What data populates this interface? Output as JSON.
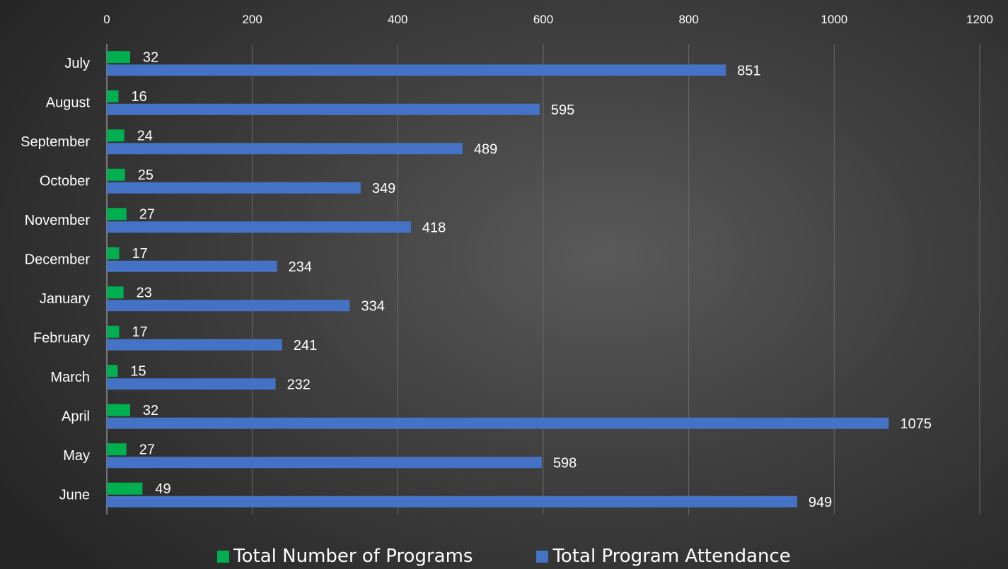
{
  "chart_data": {
    "type": "bar",
    "orientation": "horizontal",
    "categories": [
      "July",
      "August",
      "September",
      "October",
      "November",
      "December",
      "January",
      "February",
      "March",
      "April",
      "May",
      "June"
    ],
    "series": [
      {
        "name": "Total Number of Programs",
        "color": "#00b050",
        "values": [
          32,
          16,
          24,
          25,
          27,
          17,
          23,
          17,
          15,
          32,
          27,
          49
        ]
      },
      {
        "name": "Total Program Attendance",
        "color": "#4472c4",
        "values": [
          851,
          595,
          489,
          349,
          418,
          234,
          334,
          241,
          232,
          1075,
          598,
          949
        ]
      }
    ],
    "x_ticks": [
      "0",
      "200",
      "400",
      "600",
      "800",
      "1000",
      "1200"
    ],
    "xlim": [
      0,
      1200
    ],
    "axis_position": "top",
    "grid": true,
    "legend_placement": "bottom"
  }
}
